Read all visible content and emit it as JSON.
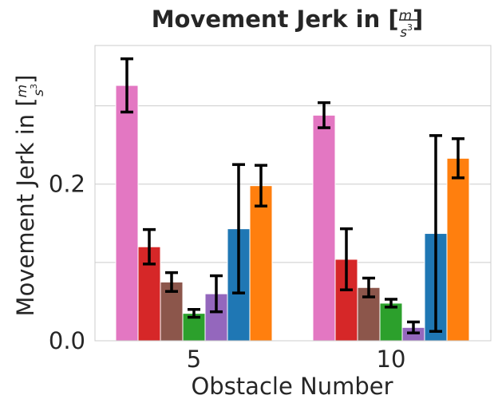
{
  "chart_data": {
    "type": "bar",
    "title_prefix": "Movement Jerk in [",
    "title_suffix": "]",
    "unit_numerator": "m",
    "unit_denominator": "s",
    "unit_exponent": "3",
    "xlabel": "Obstacle Number",
    "ylabel_prefix": "Movement Jerk in [",
    "ylabel_suffix": "]",
    "categories": [
      "5",
      "10"
    ],
    "y_ticks": [
      0.0,
      0.2
    ],
    "y_tick_labels": [
      "0.0",
      "0.2"
    ],
    "y_minor_grid": [
      0.1,
      0.3
    ],
    "ylim": [
      0.0,
      0.377
    ],
    "grid": true,
    "series": [
      {
        "color": "#e377c2",
        "values": [
          0.326,
          0.288
        ],
        "errors": [
          0.034,
          0.016
        ]
      },
      {
        "color": "#d62728",
        "values": [
          0.12,
          0.104
        ],
        "errors": [
          0.022,
          0.039
        ]
      },
      {
        "color": "#8c564b",
        "values": [
          0.075,
          0.068
        ],
        "errors": [
          0.012,
          0.012
        ]
      },
      {
        "color": "#2ca02c",
        "values": [
          0.035,
          0.048
        ],
        "errors": [
          0.005,
          0.005
        ]
      },
      {
        "color": "#9467bd",
        "values": [
          0.06,
          0.017
        ],
        "errors": [
          0.023,
          0.007
        ]
      },
      {
        "color": "#1f77b4",
        "values": [
          0.143,
          0.137
        ],
        "errors": [
          0.082,
          0.125
        ]
      },
      {
        "color": "#ff7f0e",
        "values": [
          0.198,
          0.233
        ],
        "errors": [
          0.026,
          0.025
        ]
      }
    ]
  }
}
